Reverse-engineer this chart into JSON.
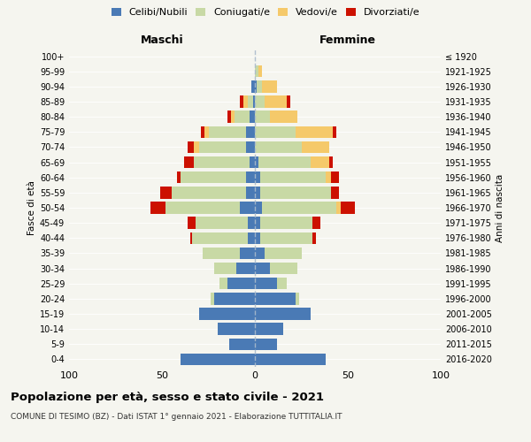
{
  "age_groups": [
    "0-4",
    "5-9",
    "10-14",
    "15-19",
    "20-24",
    "25-29",
    "30-34",
    "35-39",
    "40-44",
    "45-49",
    "50-54",
    "55-59",
    "60-64",
    "65-69",
    "70-74",
    "75-79",
    "80-84",
    "85-89",
    "90-94",
    "95-99",
    "100+"
  ],
  "birth_years": [
    "2016-2020",
    "2011-2015",
    "2006-2010",
    "2001-2005",
    "1996-2000",
    "1991-1995",
    "1986-1990",
    "1981-1985",
    "1976-1980",
    "1971-1975",
    "1966-1970",
    "1961-1965",
    "1956-1960",
    "1951-1955",
    "1946-1950",
    "1941-1945",
    "1936-1940",
    "1931-1935",
    "1926-1930",
    "1921-1925",
    "≤ 1920"
  ],
  "colors": {
    "celibe": "#4a7ab5",
    "coniugato": "#c8d9a5",
    "vedovo": "#f5c96a",
    "divorziato": "#cc1100"
  },
  "maschi": {
    "celibe": [
      40,
      14,
      20,
      30,
      22,
      15,
      10,
      8,
      4,
      4,
      8,
      5,
      5,
      3,
      5,
      5,
      3,
      1,
      2,
      0,
      0
    ],
    "coniugato": [
      0,
      0,
      0,
      0,
      2,
      4,
      12,
      20,
      30,
      28,
      40,
      40,
      35,
      30,
      25,
      20,
      8,
      3,
      0,
      0,
      0
    ],
    "vedovo": [
      0,
      0,
      0,
      0,
      0,
      0,
      0,
      0,
      0,
      0,
      0,
      0,
      0,
      0,
      3,
      2,
      2,
      2,
      0,
      0,
      0
    ],
    "divorziato": [
      0,
      0,
      0,
      0,
      0,
      0,
      0,
      0,
      1,
      4,
      8,
      6,
      2,
      5,
      3,
      2,
      2,
      2,
      0,
      0,
      0
    ]
  },
  "femmine": {
    "nubile": [
      38,
      12,
      15,
      30,
      22,
      12,
      8,
      5,
      3,
      3,
      4,
      3,
      3,
      2,
      0,
      0,
      0,
      0,
      1,
      0,
      0
    ],
    "coniugata": [
      0,
      0,
      0,
      0,
      2,
      5,
      15,
      20,
      28,
      28,
      40,
      38,
      35,
      28,
      25,
      22,
      8,
      5,
      3,
      2,
      0
    ],
    "vedova": [
      0,
      0,
      0,
      0,
      0,
      0,
      0,
      0,
      0,
      0,
      2,
      0,
      3,
      10,
      15,
      20,
      15,
      12,
      8,
      2,
      0
    ],
    "divorziata": [
      0,
      0,
      0,
      0,
      0,
      0,
      0,
      0,
      2,
      4,
      8,
      4,
      4,
      2,
      0,
      2,
      0,
      2,
      0,
      0,
      0
    ]
  },
  "xlim": 100,
  "title": "Popolazione per età, sesso e stato civile - 2021",
  "subtitle": "COMUNE DI TESIMO (BZ) - Dati ISTAT 1° gennaio 2021 - Elaborazione TUTTITALIA.IT",
  "ylabel_left": "Fasce di età",
  "ylabel_right": "Anni di nascita",
  "maschi_label": "Maschi",
  "femmine_label": "Femmine",
  "legend_labels": [
    "Celibi/Nubili",
    "Coniugati/e",
    "Vedovi/e",
    "Divorziati/e"
  ],
  "background": "#f5f5ef",
  "grid_color": "#ffffff",
  "dashed_line_color": "#aabbcc"
}
